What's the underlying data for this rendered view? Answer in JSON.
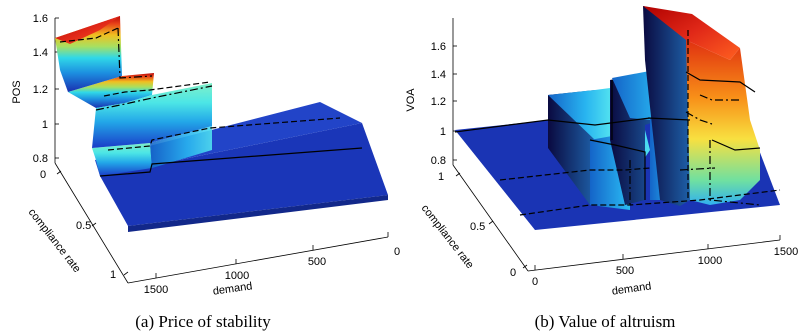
{
  "chart_data": [
    {
      "type": "surface",
      "caption": "(a) Price of stability",
      "zlabel": "POS",
      "xlabel": "demand",
      "ylabel": "compliance rate",
      "z_ticks": [
        "0.8",
        "1",
        "1.2",
        "1.4",
        "1.6"
      ],
      "x_ticks": [
        "1500",
        "1000",
        "500",
        "0"
      ],
      "y_ticks": [
        "0",
        "0.5",
        "1"
      ],
      "zlim": [
        0.8,
        1.6
      ],
      "xlim": [
        0,
        1600
      ],
      "ylim": [
        0,
        1
      ],
      "colormap": "jet"
    },
    {
      "type": "surface",
      "caption": "(b) Value of altruism",
      "zlabel": "VOA",
      "xlabel": "demand",
      "ylabel": "compliance rate",
      "z_ticks": [
        "0.8",
        "1",
        "1.2",
        "1.4",
        "1.6"
      ],
      "x_ticks": [
        "0",
        "500",
        "1000",
        "1500"
      ],
      "y_ticks": [
        "0",
        "0.5",
        "1"
      ],
      "zlim": [
        0.8,
        1.6
      ],
      "xlim": [
        0,
        1600
      ],
      "ylim": [
        0,
        1
      ],
      "colormap": "jet"
    }
  ]
}
